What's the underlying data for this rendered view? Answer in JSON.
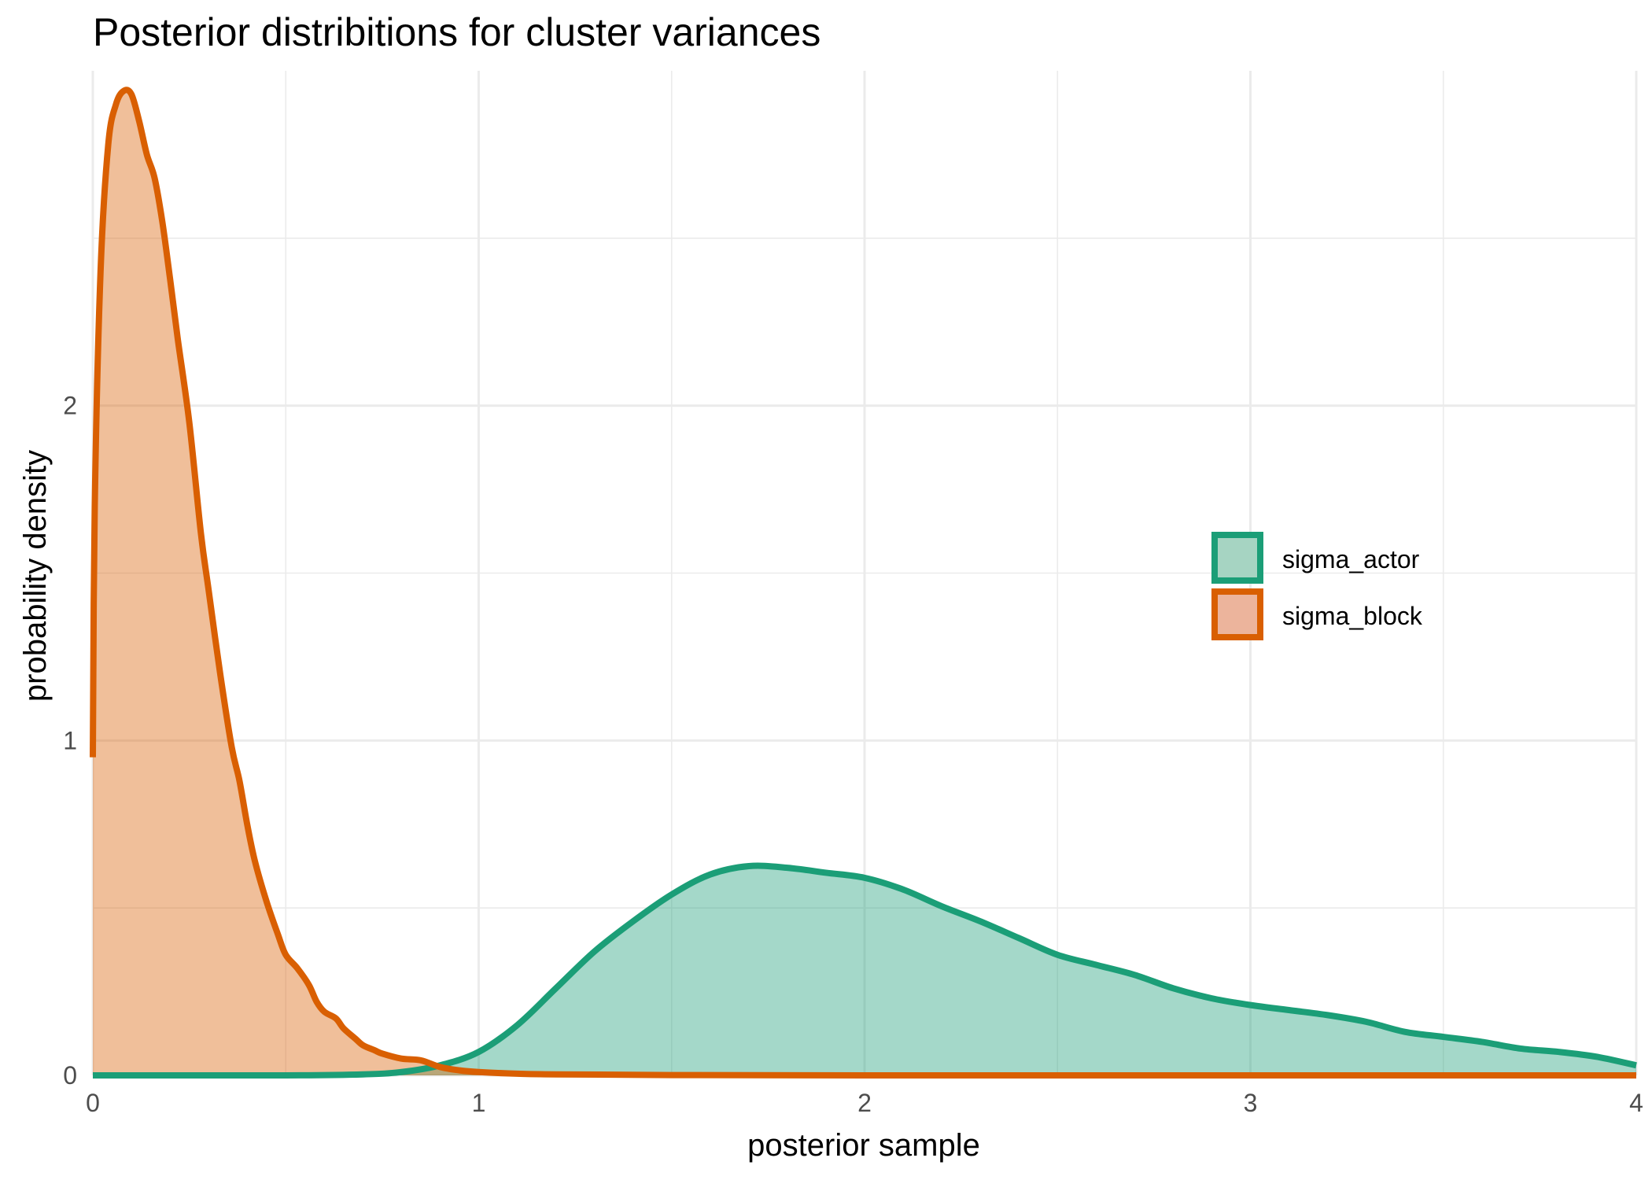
{
  "chart_data": {
    "type": "area",
    "title": "Posterior distribitions for cluster variances",
    "xlabel": "posterior sample",
    "ylabel": "probability density",
    "xlim": [
      0,
      4
    ],
    "ylim": [
      0,
      3
    ],
    "xticks": [
      0,
      1,
      2,
      3,
      4
    ],
    "yticks": [
      0,
      1,
      2
    ],
    "grid": true,
    "legend_position": "right",
    "series": [
      {
        "name": "sigma_actor",
        "line_color": "#1b9e77",
        "fill_color": "#a6d4c2",
        "x": [
          0,
          0.5,
          0.7,
          0.8,
          0.9,
          1.0,
          1.1,
          1.2,
          1.3,
          1.4,
          1.5,
          1.6,
          1.7,
          1.8,
          1.9,
          2.0,
          2.1,
          2.2,
          2.3,
          2.4,
          2.5,
          2.6,
          2.7,
          2.8,
          2.9,
          3.0,
          3.1,
          3.2,
          3.3,
          3.4,
          3.5,
          3.6,
          3.7,
          3.8,
          3.9,
          4.0
        ],
        "y": [
          0,
          0,
          0.003,
          0.01,
          0.03,
          0.07,
          0.15,
          0.26,
          0.37,
          0.46,
          0.54,
          0.6,
          0.625,
          0.62,
          0.605,
          0.59,
          0.555,
          0.505,
          0.46,
          0.41,
          0.36,
          0.33,
          0.3,
          0.26,
          0.23,
          0.21,
          0.195,
          0.18,
          0.16,
          0.13,
          0.115,
          0.1,
          0.08,
          0.07,
          0.055,
          0.03
        ]
      },
      {
        "name": "sigma_block",
        "line_color": "#d95f02",
        "fill_color": "#ecb49c",
        "x": [
          0,
          0.005,
          0.02,
          0.04,
          0.06,
          0.08,
          0.1,
          0.12,
          0.14,
          0.16,
          0.18,
          0.2,
          0.22,
          0.25,
          0.28,
          0.3,
          0.33,
          0.36,
          0.38,
          0.4,
          0.42,
          0.45,
          0.48,
          0.5,
          0.53,
          0.56,
          0.58,
          0.6,
          0.63,
          0.65,
          0.68,
          0.7,
          0.73,
          0.75,
          0.8,
          0.85,
          0.9,
          0.95,
          1.0,
          1.1,
          1.2,
          1.5,
          2.0,
          3.0,
          4.0
        ],
        "y": [
          0.95,
          1.7,
          2.4,
          2.78,
          2.9,
          2.94,
          2.93,
          2.85,
          2.75,
          2.68,
          2.55,
          2.38,
          2.2,
          1.95,
          1.62,
          1.45,
          1.2,
          0.98,
          0.88,
          0.75,
          0.64,
          0.52,
          0.42,
          0.36,
          0.32,
          0.27,
          0.22,
          0.19,
          0.17,
          0.14,
          0.11,
          0.09,
          0.075,
          0.065,
          0.05,
          0.045,
          0.025,
          0.015,
          0.01,
          0.005,
          0.003,
          0.001,
          0,
          0,
          0
        ]
      }
    ]
  }
}
